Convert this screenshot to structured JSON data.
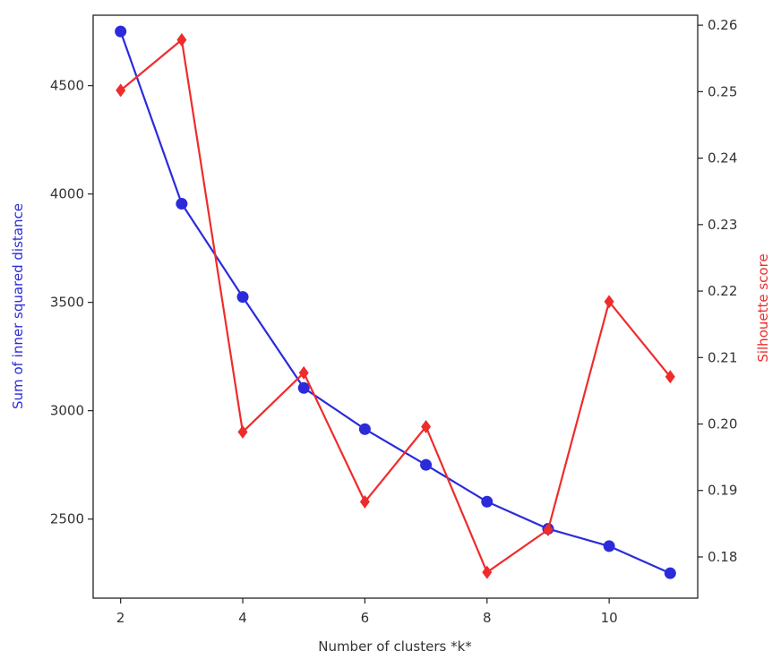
{
  "chart_data": {
    "type": "line",
    "title": "",
    "xlabel": "Number of clusters *k*",
    "x": [
      2,
      3,
      4,
      5,
      6,
      7,
      8,
      9,
      10,
      11
    ],
    "xticks": [
      "2",
      "4",
      "6",
      "8",
      "10"
    ],
    "xlim": [
      1.55,
      11.45
    ],
    "grid": false,
    "series": [
      {
        "axis": "left",
        "color": "#2b2bdc",
        "marker": "circle",
        "ylabel": "Sum of inner squared distance",
        "ylim": [
          2135,
          4825
        ],
        "yticks": [
          "2500",
          "3000",
          "3500",
          "4000",
          "4500"
        ],
        "values": [
          4750,
          3955,
          3525,
          3105,
          2915,
          2750,
          2580,
          2455,
          2375,
          2250
        ]
      },
      {
        "axis": "right",
        "color": "#ee2c2c",
        "marker": "diamond",
        "ylabel": "Silhouette score",
        "ylim": [
          0.1738,
          0.2615
        ],
        "yticks": [
          "0.18",
          "0.19",
          "0.20",
          "0.21",
          "0.22",
          "0.23",
          "0.24",
          "0.25",
          "0.26"
        ],
        "values": [
          0.2502,
          0.2578,
          0.1988,
          0.2077,
          0.1883,
          0.1996,
          0.1777,
          0.1841,
          0.2184,
          0.2071
        ]
      }
    ]
  }
}
